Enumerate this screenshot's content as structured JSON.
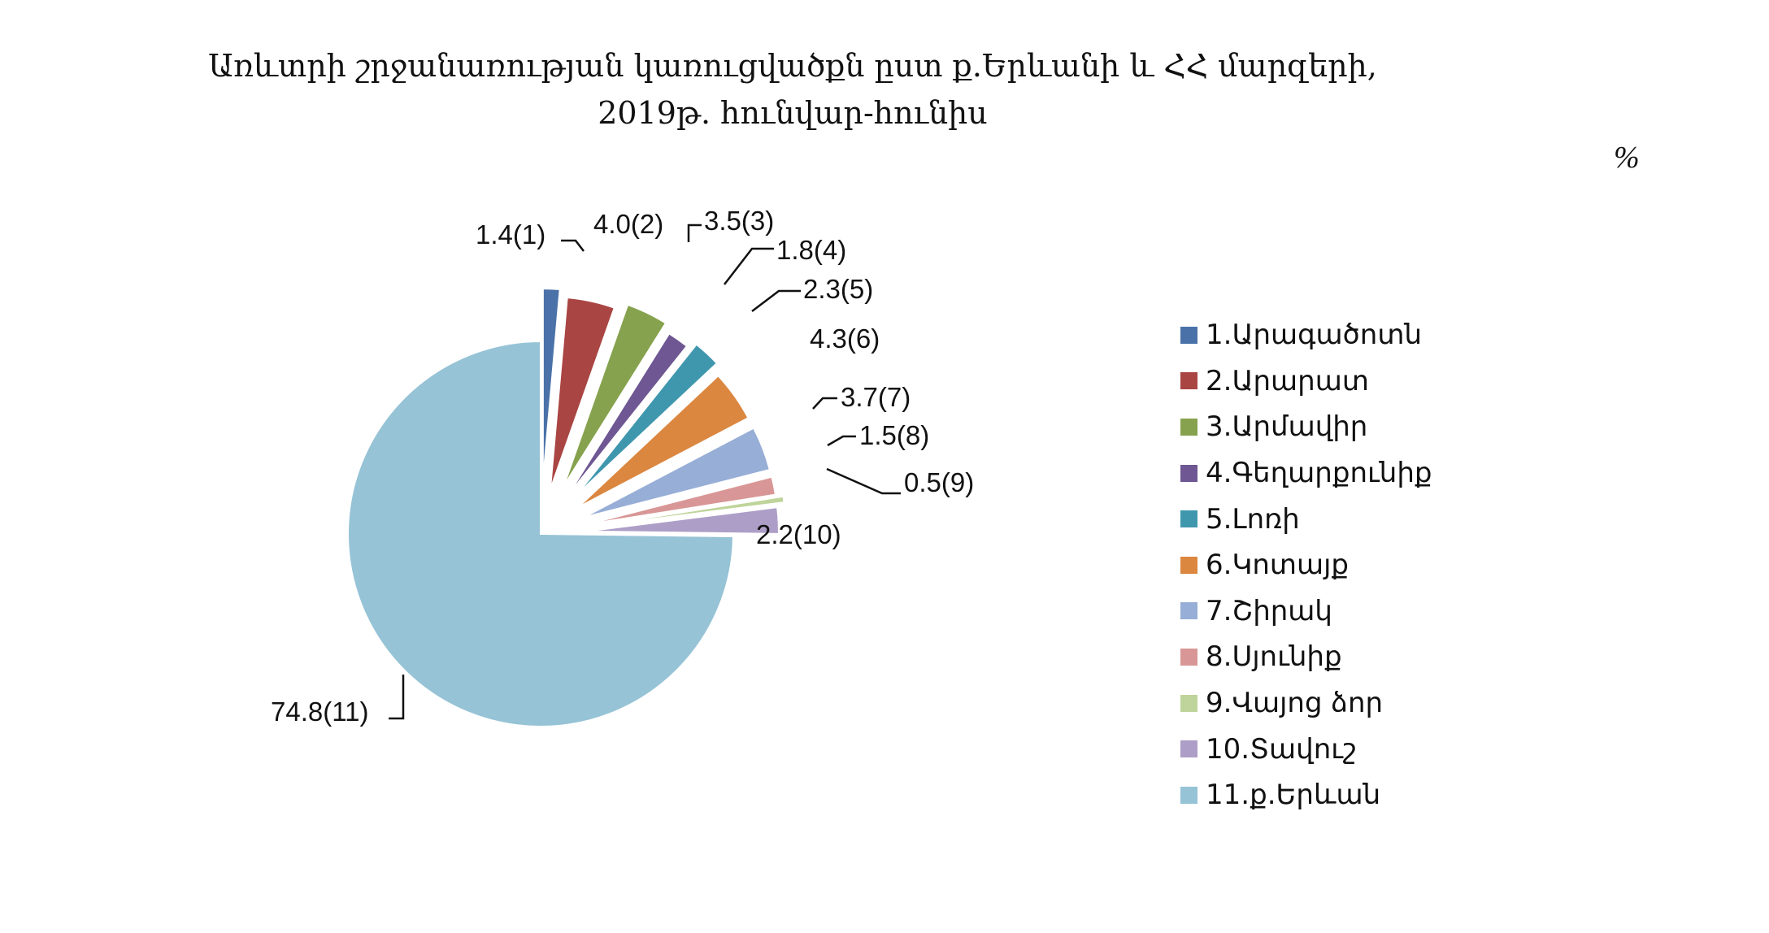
{
  "header": {
    "title_line1": "Առևտրի շրջանառության  կառուցվածքն ըստ ք.Երևանի և ՀՀ մարզերի,",
    "title_line2": "2019թ. հունվար-հունիս",
    "unit": "%"
  },
  "chart_data": {
    "type": "pie",
    "exploded": true,
    "title": "Առևտրի շրջանառության  կառուցվածքն ըստ ք.Երևանի և ՀՀ մարզերի, 2019թ. հունվար-հունիս",
    "unit": "%",
    "legend_position": "right",
    "slices": [
      {
        "name": "1.Արագածոտն",
        "value": 1.4,
        "label": "1.4(1)",
        "color": "#4A72A8"
      },
      {
        "name": "2.Արարատ",
        "value": 4.0,
        "label": "4.0(2)",
        "color": "#A94543"
      },
      {
        "name": "3.Արմավիր",
        "value": 3.5,
        "label": "3.5(3)",
        "color": "#86A24E"
      },
      {
        "name": "4.Գեղարքունիք",
        "value": 1.8,
        "label": "1.8(4)",
        "color": "#6E5792"
      },
      {
        "name": "5.Լոռի",
        "value": 2.3,
        "label": "2.3(5)",
        "color": "#3F97AE"
      },
      {
        "name": "6.Կոտայք",
        "value": 4.3,
        "label": "4.3(6)",
        "color": "#DB8740"
      },
      {
        "name": "7.Շիրակ",
        "value": 3.7,
        "label": "3.7(7)",
        "color": "#97AED6"
      },
      {
        "name": "8.Սյունիք",
        "value": 1.5,
        "label": "1.5(8)",
        "color": "#D89796"
      },
      {
        "name": "9.Վայոց ձոր",
        "value": 0.5,
        "label": "0.5(9)",
        "color": "#BFD49A"
      },
      {
        "name": "10.Տավուշ",
        "value": 2.2,
        "label": "2.2(10)",
        "color": "#AD9EC7"
      },
      {
        "name": "11.ք.Երևան",
        "value": 74.8,
        "label": "74.8(11)",
        "color": "#96C3D6"
      }
    ]
  }
}
